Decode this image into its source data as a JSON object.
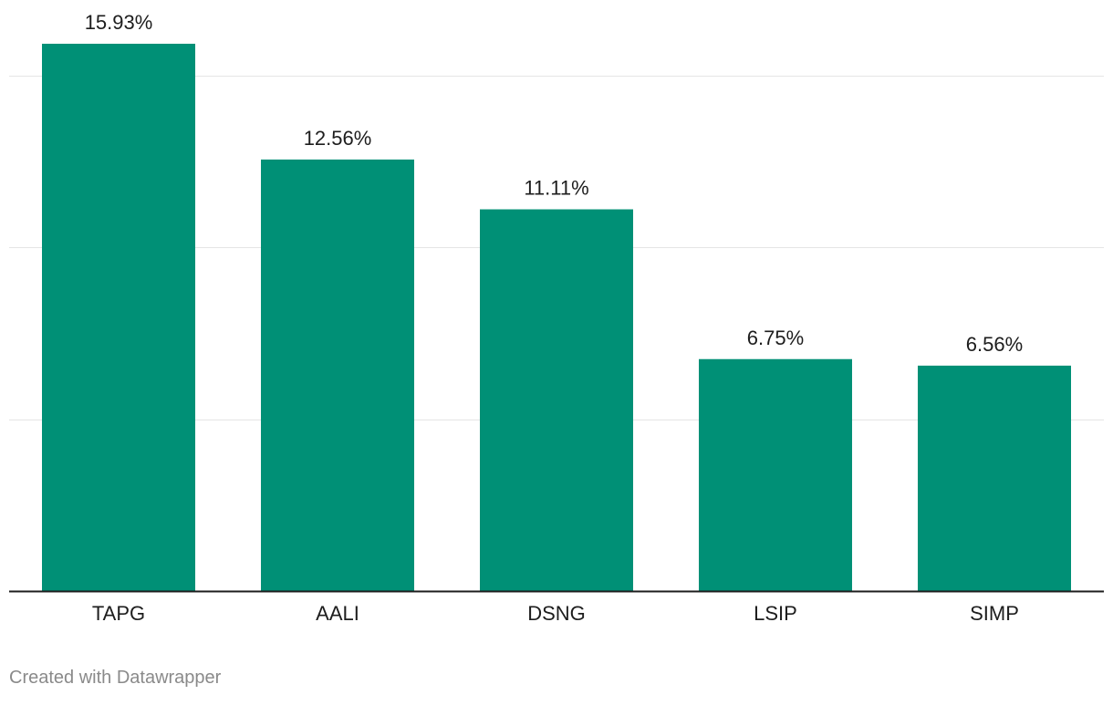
{
  "chart_data": {
    "type": "bar",
    "categories": [
      "TAPG",
      "AALI",
      "DSNG",
      "LSIP",
      "SIMP"
    ],
    "values": [
      15.93,
      12.56,
      11.11,
      6.75,
      6.56
    ],
    "value_labels": [
      "15.93%",
      "12.56%",
      "11.11%",
      "6.75%",
      "6.56%"
    ],
    "title": "",
    "xlabel": "",
    "ylabel": "",
    "ylim": [
      0,
      15
    ],
    "gridlines": [
      5,
      10,
      15
    ],
    "grid": true,
    "legend": "none",
    "bar_color": "#009076",
    "grid_color": "#e5e5e5",
    "axis_color": "#1d1d1d"
  },
  "footer": {
    "credit": "Created with Datawrapper"
  }
}
